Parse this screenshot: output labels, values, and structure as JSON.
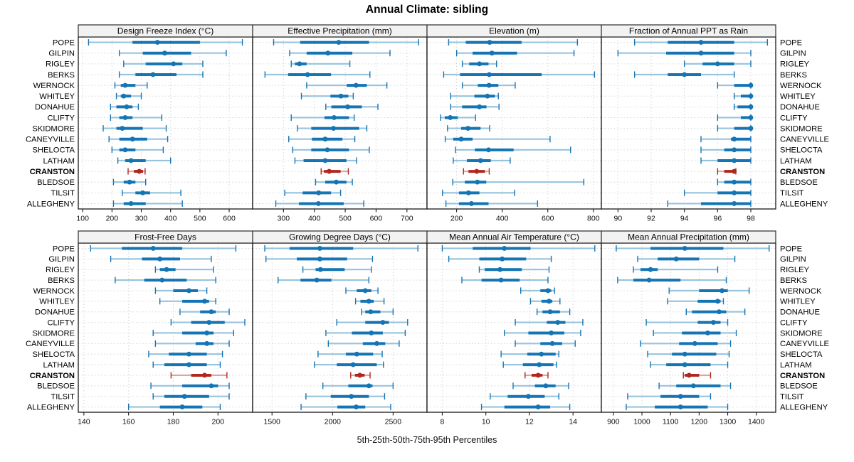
{
  "title": "Annual Climate: sibling",
  "xlabel": "5th-25th-50th-75th-95th Percentiles",
  "highlight_station": "CRANSTON",
  "stations": [
    "POPE",
    "GILPIN",
    "RIGLEY",
    "BERKS",
    "WERNOCK",
    "WHITLEY",
    "DONAHUE",
    "CLIFTY",
    "SKIDMORE",
    "CANEYVILLE",
    "SHELOCTA",
    "LATHAM",
    "CRANSTON",
    "BLEDSOE",
    "TILSIT",
    "ALLEGHENY"
  ],
  "colors": {
    "normal": "#1474b4",
    "normal_light": "#97c3de",
    "highlight": "#b3261e",
    "highlight_light": "#dfa49d",
    "grid": "#d6d6d6",
    "strip_bg": "#f2f2f2",
    "border": "#1a1a1a",
    "tick_text": "#111111",
    "panel_bg": "#ffffff"
  },
  "chart_data": {
    "type": "trellis-percentile-dotplot",
    "percentiles": [
      5,
      25,
      50,
      75,
      95
    ],
    "layout": {
      "rows": 2,
      "cols": 4,
      "grid": "dotted",
      "legend": "none"
    },
    "panels": [
      {
        "title": "Design Freeze Index (°C)",
        "xlim": [
          85,
          680
        ],
        "ticks": [
          100,
          200,
          300,
          400,
          500,
          600
        ],
        "values": [
          [
            120,
            270,
            355,
            500,
            645
          ],
          [
            225,
            305,
            380,
            470,
            590
          ],
          [
            240,
            315,
            410,
            440,
            510
          ],
          [
            225,
            280,
            340,
            420,
            510
          ],
          [
            210,
            230,
            245,
            280,
            320
          ],
          [
            215,
            230,
            240,
            265,
            300
          ],
          [
            195,
            215,
            250,
            270,
            290
          ],
          [
            195,
            225,
            245,
            270,
            370
          ],
          [
            170,
            215,
            235,
            305,
            385
          ],
          [
            190,
            225,
            270,
            320,
            390
          ],
          [
            200,
            225,
            245,
            280,
            375
          ],
          [
            220,
            245,
            265,
            315,
            400
          ],
          [
            255,
            275,
            293,
            306,
            313
          ],
          [
            205,
            240,
            260,
            280,
            315
          ],
          [
            235,
            280,
            305,
            330,
            435
          ],
          [
            205,
            240,
            265,
            315,
            440
          ]
        ]
      },
      {
        "title": "Effective Precipitation (mm)",
        "xlim": [
          200,
          765
        ],
        "ticks": [
          300,
          400,
          500,
          600,
          700
        ],
        "values": [
          [
            268,
            354,
            479,
            577,
            738
          ],
          [
            320,
            375,
            444,
            523,
            645
          ],
          [
            325,
            337,
            352,
            375,
            515
          ],
          [
            240,
            315,
            378,
            454,
            580
          ],
          [
            375,
            505,
            535,
            570,
            635
          ],
          [
            358,
            452,
            486,
            510,
            526
          ],
          [
            437,
            455,
            508,
            554,
            606
          ],
          [
            325,
            433,
            464,
            512,
            529
          ],
          [
            345,
            390,
            462,
            545,
            570
          ],
          [
            317,
            392,
            435,
            491,
            531
          ],
          [
            330,
            390,
            442,
            512,
            578
          ],
          [
            337,
            365,
            435,
            504,
            537
          ],
          [
            422,
            431,
            448,
            485,
            510
          ],
          [
            404,
            435,
            471,
            504,
            523
          ],
          [
            304,
            362,
            414,
            454,
            485
          ],
          [
            275,
            350,
            413,
            495,
            560
          ]
        ]
      },
      {
        "title": "Elevation (m)",
        "xlim": [
          70,
          835
        ],
        "ticks": [
          200,
          400,
          600,
          800
        ],
        "values": [
          [
            165,
            240,
            345,
            485,
            730
          ],
          [
            200,
            270,
            355,
            465,
            715
          ],
          [
            225,
            255,
            300,
            340,
            375
          ],
          [
            143,
            215,
            343,
            573,
            805
          ],
          [
            225,
            293,
            342,
            383,
            457
          ],
          [
            174,
            278,
            335,
            368,
            383
          ],
          [
            174,
            224,
            300,
            331,
            386
          ],
          [
            130,
            148,
            172,
            205,
            283
          ],
          [
            160,
            220,
            250,
            305,
            345
          ],
          [
            150,
            185,
            220,
            270,
            610
          ],
          [
            195,
            280,
            340,
            450,
            700
          ],
          [
            185,
            245,
            305,
            350,
            435
          ],
          [
            230,
            252,
            288,
            324,
            343
          ],
          [
            183,
            236,
            291,
            330,
            758
          ],
          [
            138,
            210,
            252,
            300,
            455
          ],
          [
            153,
            210,
            265,
            340,
            555
          ]
        ]
      },
      {
        "title": "Fraction of Annual PPT as Rain",
        "xlim": [
          89.0,
          99.5
        ],
        "ticks": [
          90,
          92,
          94,
          96,
          98
        ],
        "values": [
          [
            91,
            93,
            95,
            97,
            99
          ],
          [
            90,
            92.9,
            95,
            97,
            98
          ],
          [
            94,
            95.1,
            96,
            97,
            98
          ],
          [
            91,
            93,
            94,
            95,
            97
          ],
          [
            96,
            97,
            98,
            98,
            98
          ],
          [
            97,
            97.4,
            98,
            98,
            98
          ],
          [
            97,
            97.2,
            98,
            98,
            98
          ],
          [
            96,
            97.4,
            98,
            98,
            98
          ],
          [
            96,
            97,
            98,
            98,
            98
          ],
          [
            95,
            96.8,
            97,
            98,
            98
          ],
          [
            95,
            96.4,
            97,
            98,
            98
          ],
          [
            95,
            96,
            97,
            98,
            98
          ],
          [
            96,
            96.4,
            97,
            97.05,
            97.1
          ],
          [
            96,
            96.4,
            97,
            98,
            98
          ],
          [
            94,
            96,
            97,
            98,
            98
          ],
          [
            93,
            95,
            97,
            98,
            98
          ]
        ]
      },
      {
        "title": "Frost-Free Days",
        "xlim": [
          137.5,
          215.5
        ],
        "ticks": [
          140,
          160,
          180,
          200
        ],
        "values": [
          [
            143,
            157,
            171,
            184,
            208
          ],
          [
            152,
            166,
            174,
            183,
            197
          ],
          [
            172,
            174,
            177,
            181,
            198
          ],
          [
            154,
            167,
            175,
            186,
            199
          ],
          [
            172,
            180,
            187,
            191,
            195
          ],
          [
            174,
            184,
            194,
            196,
            199
          ],
          [
            183,
            192,
            197,
            199,
            205
          ],
          [
            179,
            188,
            196,
            203,
            212
          ],
          [
            171,
            184,
            195,
            198,
            207
          ],
          [
            172,
            190,
            195,
            198,
            205
          ],
          [
            169,
            178,
            187,
            195,
            202
          ],
          [
            171,
            176,
            187,
            195,
            201
          ],
          [
            179,
            188,
            194,
            197,
            204
          ],
          [
            170,
            184,
            197,
            200,
            205
          ],
          [
            171,
            176,
            185,
            196,
            205
          ],
          [
            160,
            174,
            184,
            193,
            201
          ]
        ]
      },
      {
        "title": "Growing Degree Days (°C)",
        "xlim": [
          1340,
          2780
        ],
        "ticks": [
          1500,
          2000,
          2500
        ],
        "values": [
          [
            1440,
            1645,
            1895,
            2170,
            2705
          ],
          [
            1450,
            1705,
            1895,
            2120,
            2330
          ],
          [
            1755,
            1860,
            1900,
            2100,
            2320
          ],
          [
            1550,
            1735,
            1870,
            1990,
            2300
          ],
          [
            2110,
            2200,
            2270,
            2320,
            2375
          ],
          [
            2190,
            2230,
            2300,
            2340,
            2425
          ],
          [
            2240,
            2270,
            2315,
            2395,
            2500
          ],
          [
            2035,
            2270,
            2415,
            2465,
            2620
          ],
          [
            1945,
            2160,
            2320,
            2415,
            2600
          ],
          [
            1965,
            2250,
            2365,
            2435,
            2550
          ],
          [
            1880,
            2110,
            2200,
            2335,
            2410
          ],
          [
            1850,
            2035,
            2170,
            2365,
            2420
          ],
          [
            2150,
            2185,
            2225,
            2265,
            2310
          ],
          [
            1920,
            2130,
            2300,
            2330,
            2500
          ],
          [
            1780,
            1985,
            2155,
            2300,
            2430
          ],
          [
            1740,
            2040,
            2195,
            2270,
            2480
          ]
        ]
      },
      {
        "title": "Mean Annual Air Temperature (°C)",
        "xlim": [
          7.3,
          15.3
        ],
        "ticks": [
          8,
          10,
          12,
          14
        ],
        "values": [
          [
            8.0,
            9.4,
            10.85,
            12.05,
            15.0
          ],
          [
            8.3,
            9.7,
            10.75,
            11.85,
            13.0
          ],
          [
            9.7,
            9.95,
            10.65,
            11.65,
            12.9
          ],
          [
            8.9,
            9.8,
            10.7,
            11.55,
            12.85
          ],
          [
            11.6,
            12.5,
            12.85,
            13.0,
            13.15
          ],
          [
            12.05,
            12.55,
            12.9,
            13.05,
            13.4
          ],
          [
            12.35,
            12.6,
            12.95,
            13.4,
            13.85
          ],
          [
            11.35,
            12.8,
            13.3,
            13.65,
            14.45
          ],
          [
            10.85,
            11.95,
            13.0,
            13.6,
            14.35
          ],
          [
            11.35,
            12.5,
            13.05,
            13.5,
            14.1
          ],
          [
            10.7,
            11.9,
            12.55,
            13.2,
            13.35
          ],
          [
            10.8,
            11.7,
            12.45,
            13.1,
            13.25
          ],
          [
            11.8,
            12.1,
            12.4,
            12.6,
            12.85
          ],
          [
            11.25,
            12.25,
            12.75,
            13.2,
            13.8
          ],
          [
            10.2,
            11.0,
            11.95,
            12.7,
            13.35
          ],
          [
            9.8,
            10.85,
            12.4,
            12.95,
            13.85
          ]
        ]
      },
      {
        "title": "Mean Annual Precipitation (mm)",
        "xlim": [
          858,
          1468
        ],
        "ticks": [
          900,
          1000,
          1100,
          1200,
          1300,
          1400
        ],
        "values": [
          [
            910,
            1030,
            1150,
            1285,
            1445
          ],
          [
            985,
            1055,
            1120,
            1200,
            1325
          ],
          [
            970,
            995,
            1030,
            1055,
            1265
          ],
          [
            915,
            970,
            1025,
            1135,
            1295
          ],
          [
            1095,
            1200,
            1280,
            1300,
            1375
          ],
          [
            1090,
            1195,
            1265,
            1275,
            1285
          ],
          [
            1155,
            1175,
            1270,
            1295,
            1360
          ],
          [
            1015,
            1195,
            1250,
            1275,
            1300
          ],
          [
            1040,
            1140,
            1230,
            1275,
            1330
          ],
          [
            995,
            1130,
            1185,
            1265,
            1310
          ],
          [
            1020,
            1105,
            1150,
            1260,
            1305
          ],
          [
            1030,
            1085,
            1150,
            1240,
            1300
          ],
          [
            1145,
            1150,
            1165,
            1200,
            1240
          ],
          [
            1060,
            1120,
            1180,
            1275,
            1310
          ],
          [
            950,
            1065,
            1135,
            1200,
            1240
          ],
          [
            945,
            1045,
            1135,
            1230,
            1300
          ]
        ]
      }
    ]
  }
}
